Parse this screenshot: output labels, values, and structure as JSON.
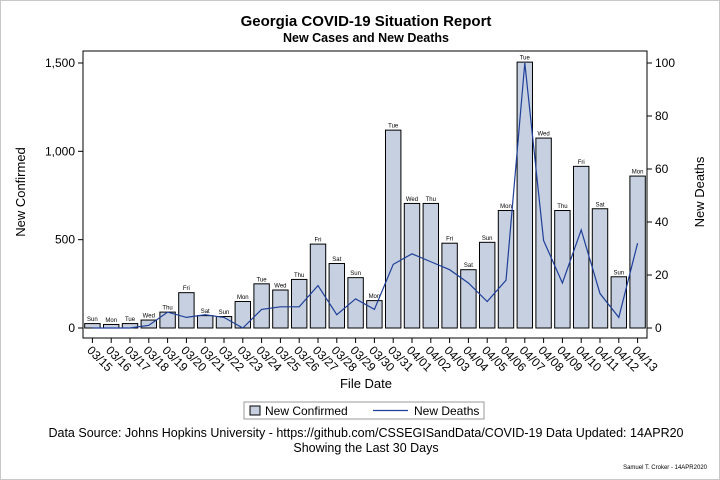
{
  "chart_data": {
    "type": "bar",
    "title": "Georgia COVID-19 Situation Report",
    "subtitle": "New Cases and New Deaths",
    "xlabel": "File Date",
    "ylabel": "New Confirmed",
    "y2label": "New Deaths",
    "ylim": [
      0,
      1600
    ],
    "y2lim": [
      0,
      105
    ],
    "yticks": [
      "0",
      "500",
      "1,000",
      "1,500"
    ],
    "y2ticks": [
      "0",
      "20",
      "40",
      "60",
      "80",
      "100"
    ],
    "categories": [
      "03/15",
      "03/16",
      "03/17",
      "03/18",
      "03/19",
      "03/20",
      "03/21",
      "03/22",
      "03/23",
      "03/24",
      "03/25",
      "03/26",
      "03/27",
      "03/28",
      "03/29",
      "03/30",
      "03/31",
      "04/01",
      "04/02",
      "04/03",
      "04/04",
      "04/05",
      "04/06",
      "04/07",
      "04/08",
      "04/09",
      "04/10",
      "04/11",
      "04/12",
      "04/13"
    ],
    "days": [
      "Sun",
      "Mon",
      "Tue",
      "Wed",
      "Thu",
      "Fri",
      "Sat",
      "Sun",
      "Mon",
      "Tue",
      "Wed",
      "Thu",
      "Fri",
      "Sat",
      "Sun",
      "Mon",
      "Tue",
      "Wed",
      "Thu",
      "Fri",
      "Sat",
      "Sun",
      "Mon",
      "Tue",
      "Wed",
      "Thu",
      "Fri",
      "Sat",
      "Sun",
      "Mon"
    ],
    "series": [
      {
        "name": "New Confirmed",
        "kind": "bar",
        "axis": "left",
        "values": [
          25,
          20,
          25,
          45,
          90,
          200,
          70,
          65,
          150,
          250,
          215,
          275,
          475,
          365,
          285,
          155,
          1120,
          705,
          705,
          480,
          330,
          485,
          665,
          1505,
          1075,
          665,
          915,
          675,
          290,
          860
        ]
      },
      {
        "name": "New Deaths",
        "kind": "line",
        "axis": "right",
        "values": [
          0,
          0,
          0,
          1,
          6,
          4,
          5,
          4,
          0,
          7,
          8,
          8,
          16,
          5,
          11,
          7,
          24,
          28,
          25,
          22,
          17,
          10,
          18,
          100,
          33,
          17,
          37,
          13,
          4,
          32
        ]
      }
    ],
    "legend": {
      "position": "bottom",
      "entries": [
        "New Confirmed",
        "New Deaths"
      ]
    },
    "colors": {
      "bar_fill": "#c6d0e0",
      "bar_stroke": "#000000",
      "line": "#1f3f99"
    },
    "footnote": "Data Source: Johns Hopkins University - https://github.com/CSSEGISandData/COVID-19  Data Updated: 14APR20",
    "footnote2": "Showing the Last 30 Days",
    "credit": "Samuel T. Croker - 14APR2020"
  }
}
